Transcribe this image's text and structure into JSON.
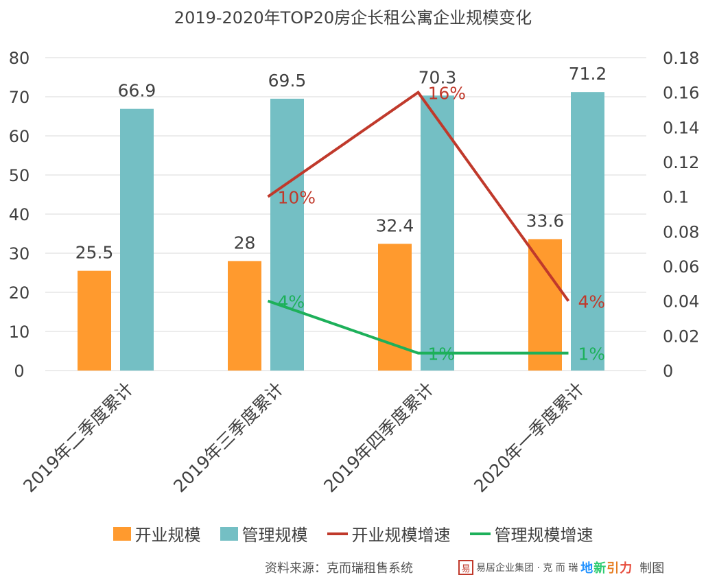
{
  "title": "2019-2020年TOP20房企长租公寓企业规模变化",
  "colors": {
    "open_bar": "#ff9a2e",
    "manage_bar": "#74bfc4",
    "open_growth": "#c0392b",
    "manage_growth": "#1db05a",
    "grid": "#d9d9d9",
    "text": "#404040"
  },
  "chart_data": {
    "type": "bar",
    "categories": [
      "2019年二季度累计",
      "2019年三季度累计",
      "2019年四季度累计",
      "2020年一季度累计"
    ],
    "series": [
      {
        "name": "开业规模",
        "kind": "bar",
        "axis": "left",
        "values": [
          25.5,
          28,
          32.4,
          33.6
        ],
        "labels": [
          "25.5",
          "28",
          "32.4",
          "33.6"
        ]
      },
      {
        "name": "管理规模",
        "kind": "bar",
        "axis": "left",
        "values": [
          66.9,
          69.5,
          70.3,
          71.2
        ],
        "labels": [
          "66.9",
          "69.5",
          "70.3",
          "71.2"
        ]
      },
      {
        "name": "开业规模增速",
        "kind": "line",
        "axis": "right",
        "values": [
          null,
          0.1,
          0.16,
          0.04
        ],
        "labels": [
          null,
          "10%",
          "16%",
          "4%"
        ]
      },
      {
        "name": "管理规模增速",
        "kind": "line",
        "axis": "right",
        "values": [
          null,
          0.04,
          0.01,
          0.01
        ],
        "labels": [
          null,
          "4%",
          "1%",
          "1%"
        ]
      }
    ],
    "left_axis": {
      "min": 0,
      "max": 80,
      "step": 10,
      "ticks": [
        "0",
        "10",
        "20",
        "30",
        "40",
        "50",
        "60",
        "70",
        "80"
      ]
    },
    "right_axis": {
      "min": 0,
      "max": 0.18,
      "step": 0.02,
      "ticks": [
        "0",
        "0.02",
        "0.04",
        "0.06",
        "0.08",
        "0.1",
        "0.12",
        "0.14",
        "0.16",
        "0.18"
      ]
    },
    "grid": true,
    "legend_position": "bottom"
  },
  "legend": [
    "开业规模",
    "管理规模",
    "开业规模增速",
    "管理规模增速"
  ],
  "footer": {
    "source": "资料来源：克而瑞租售系统",
    "logo_seal": "易",
    "logo_text": "易居企业集团 · 克 而 瑞",
    "logo_xin": [
      "地",
      "新",
      "引",
      "力"
    ],
    "made": "制图"
  }
}
